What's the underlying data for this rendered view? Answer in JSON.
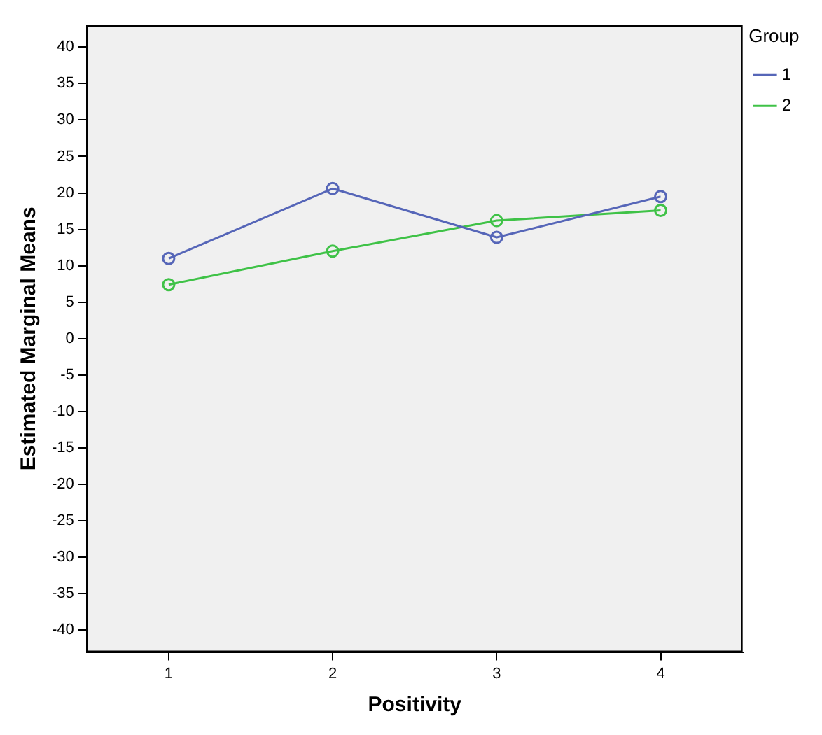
{
  "chart_data": {
    "type": "line",
    "xlabel": "Positivity",
    "ylabel": "Estimated Marginal Means",
    "legend_title": "Group",
    "categories": [
      "1",
      "2",
      "3",
      "4"
    ],
    "series": [
      {
        "name": "1",
        "color": "#5666b8",
        "values": [
          11.0,
          20.6,
          13.9,
          19.5
        ]
      },
      {
        "name": "2",
        "color": "#3fc247",
        "values": [
          7.4,
          12.0,
          16.2,
          17.6
        ]
      }
    ],
    "ylim": [
      -43,
      43
    ],
    "yticks": [
      -40,
      -35,
      -30,
      -25,
      -20,
      -15,
      -10,
      -5,
      0,
      5,
      10,
      15,
      20,
      25,
      30,
      35,
      40
    ],
    "grid": false,
    "legend": "top right",
    "marker": "circle",
    "line_style": "solid"
  }
}
